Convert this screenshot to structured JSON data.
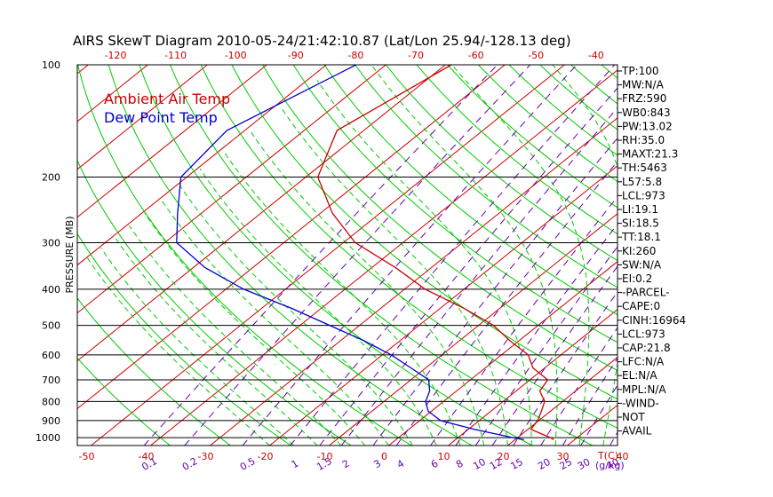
{
  "chart_data": {
    "type": "line",
    "title": "AIRS SkewT Diagram 2010-05-24/21:42:10.87 (Lat/Lon 25.94/-128.13 deg)",
    "ylabel": "PRESSURE (MB)",
    "xlabel": "T(C)",
    "mixing_ratio_label": "(g/kg)",
    "pressure_ticks": [
      100,
      200,
      300,
      400,
      500,
      600,
      700,
      800,
      900,
      1000
    ],
    "bottom_temp_ticks": [
      -50,
      -40,
      -30,
      -20,
      -10,
      0,
      10,
      20,
      30,
      40
    ],
    "top_temp_ticks": [
      -120,
      -110,
      -100,
      -90,
      -80,
      -70,
      -60,
      -50,
      -40
    ],
    "mixing_ratio_ticks": [
      "0.1",
      "0.2",
      "0.5",
      "1",
      "1.5",
      "2",
      "3",
      "4",
      "6",
      "8",
      "10",
      "12",
      "15",
      "20",
      "25",
      "30",
      "40"
    ],
    "legend": [
      {
        "name": "Ambient Air Temp",
        "color": "#cc0000"
      },
      {
        "name": "Dew Point Temp",
        "color": "#0000cc"
      }
    ],
    "colors": {
      "isotherm": "#cc0000",
      "dry_adiabat": "#00cc00",
      "moist_adiabat": "#00cc00",
      "mixing_ratio": "#6600aa",
      "isobar": "#000000"
    },
    "series": [
      {
        "name": "Ambient Air Temp",
        "color": "#cc0000",
        "points": [
          [
            100,
            -69
          ],
          [
            150,
            -74.5
          ],
          [
            200,
            -68
          ],
          [
            250,
            -58
          ],
          [
            300,
            -48
          ],
          [
            350,
            -36
          ],
          [
            400,
            -26.5
          ],
          [
            450,
            -16
          ],
          [
            500,
            -7.5
          ],
          [
            550,
            -1.5
          ],
          [
            600,
            4.5
          ],
          [
            650,
            8
          ],
          [
            700,
            13
          ],
          [
            750,
            14
          ],
          [
            800,
            17
          ],
          [
            850,
            18.5
          ],
          [
            900,
            19.8
          ],
          [
            950,
            20.5
          ],
          [
            1000,
            25.5
          ],
          [
            1013,
            26.5
          ]
        ]
      },
      {
        "name": "Dew Point Temp",
        "color": "#0000cc",
        "points": [
          [
            100,
            -85
          ],
          [
            150,
            -93
          ],
          [
            200,
            -91
          ],
          [
            250,
            -84
          ],
          [
            300,
            -78
          ],
          [
            350,
            -68
          ],
          [
            400,
            -57
          ],
          [
            450,
            -45
          ],
          [
            500,
            -35
          ],
          [
            550,
            -26
          ],
          [
            600,
            -18.5
          ],
          [
            650,
            -12.5
          ],
          [
            700,
            -7
          ],
          [
            750,
            -4.5
          ],
          [
            800,
            -3
          ],
          [
            850,
            -0.5
          ],
          [
            900,
            3.5
          ],
          [
            950,
            11
          ],
          [
            1000,
            19.2
          ],
          [
            1013,
            21.5
          ]
        ]
      }
    ]
  },
  "indices": [
    "TP:100",
    "MW:N/A",
    "FRZ:590",
    "WB0:843",
    "PW:13.02",
    "RH:35.0",
    "MAXT:21.3",
    "TH:5463",
    "L57:5.8",
    "LCL:973",
    "LI:19.1",
    "SI:18.5",
    "TT:18.1",
    "KI:260",
    "SW:N/A",
    "EI:0.2",
    "-PARCEL-",
    "CAPE:0",
    "CINH:16964",
    "LCL:973",
    "CAP:21.8",
    "LFC:N/A",
    "EL:N/A",
    "MPL:N/A",
    "-WIND-",
    "NOT",
    "AVAIL"
  ]
}
